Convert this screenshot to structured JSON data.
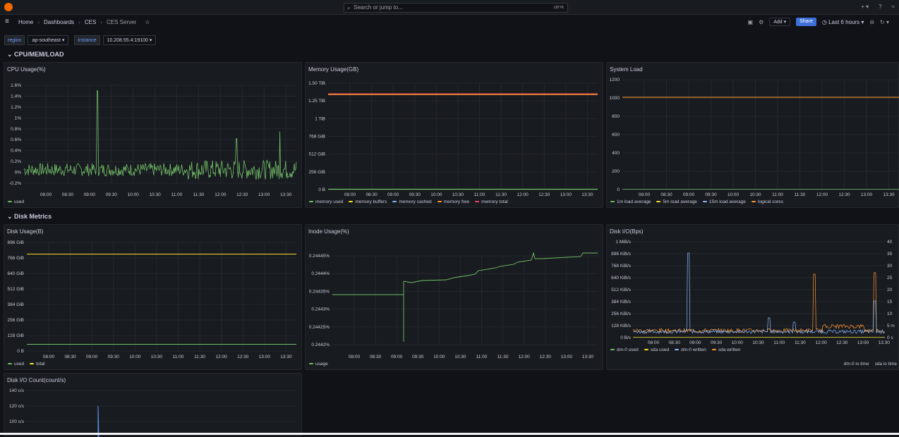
{
  "topbar": {
    "search_placeholder": "Search or jump to...",
    "search_shortcut": "ctrl+k"
  },
  "breadcrumb": [
    "Home",
    "Dashboards",
    "CES",
    "CES Server"
  ],
  "toolbar": {
    "add_label": "Add",
    "share_label": "Share",
    "time_range": "Last 6 hours"
  },
  "variables": [
    {
      "label": "region",
      "value": "ap-southeast"
    },
    {
      "label": "instance",
      "value": "10.208.55.4:19100"
    }
  ],
  "rows": {
    "cpu": "CPU/MEM/LOAD",
    "disk": "Disk Metrics"
  },
  "colors": {
    "green": "#73bf69",
    "yellow": "#fade2a",
    "blue": "#8ab8ff",
    "orange": "#ff9830",
    "red": "#f2495c",
    "pink": "#ff7383"
  },
  "panels": {
    "cpu": {
      "title": "CPU Usage(%)",
      "legend": [
        "used"
      ]
    },
    "mem": {
      "title": "Memory Usage(GB)",
      "legend": [
        "memory used",
        "memory buffers",
        "memory cached",
        "memory free",
        "memory total"
      ]
    },
    "load": {
      "title": "System Load",
      "legend": [
        "1m load average",
        "5m load average",
        "15m load average",
        "logical cores"
      ]
    },
    "disk": {
      "title": "Disk Usage(B)",
      "legend": [
        "used",
        "total"
      ]
    },
    "inode": {
      "title": "Inode Usage(%)",
      "legend": [
        "usage"
      ]
    },
    "diskio": {
      "title": "Disk I/O(Bps)",
      "legend": [
        "dm-0 used",
        "sda used",
        "dm-0 written",
        "sda written"
      ],
      "legend_right": [
        "dm-0 io time",
        "sda io time"
      ]
    },
    "iocount": {
      "title": "Disk I/O Count(count/s)"
    }
  },
  "chart_data": [
    {
      "type": "line",
      "title": "CPU Usage(%)",
      "x_ticks": [
        "08:00",
        "08:30",
        "09:00",
        "09:30",
        "10:00",
        "10:30",
        "11:00",
        "11:30",
        "12:00",
        "12:30",
        "13:00",
        "13:30"
      ],
      "y_ticks": [
        "1.6%",
        "1.4%",
        "1.2%",
        "1%",
        "0.8%",
        "0.6%",
        "0.4%",
        "0.2%",
        "0%",
        "-0.2%"
      ],
      "ylim": [
        -0.2,
        1.6
      ],
      "series": [
        {
          "name": "used",
          "baseline": 0.05,
          "noise": 0.12,
          "spikes": [
            [
              0.27,
              1.5
            ],
            [
              0.78,
              0.62
            ],
            [
              0.94,
              0.75
            ]
          ]
        }
      ]
    },
    {
      "type": "line",
      "title": "Memory Usage(GB)",
      "x_ticks": [
        "08:00",
        "08:30",
        "09:00",
        "09:30",
        "10:00",
        "10:30",
        "11:00",
        "11:30",
        "12:00",
        "12:30",
        "13:00",
        "13:30"
      ],
      "y_ticks": [
        "1.50 TiB",
        "1.25 TiB",
        "1 TiB",
        "768 GiB",
        "512 GiB",
        "256 GiB",
        "0 B"
      ],
      "ylim": [
        0,
        1.5
      ],
      "series": [
        {
          "name": "memory total",
          "value": 1.35
        },
        {
          "name": "memory free",
          "value": 1.34
        },
        {
          "name": "memory used",
          "value": 0.005
        }
      ]
    },
    {
      "type": "line",
      "title": "System Load",
      "x_ticks": [
        "08:00",
        "08:30",
        "09:00",
        "09:30",
        "10:00",
        "10:30",
        "11:00",
        "11:30",
        "12:00",
        "12:30",
        "13:00",
        "13:30"
      ],
      "y_ticks": [
        "1200",
        "1000",
        "800",
        "600",
        "400",
        "200",
        "0"
      ],
      "ylim": [
        0,
        1200
      ],
      "series": [
        {
          "name": "logical cores",
          "value": 1008
        }
      ]
    },
    {
      "type": "line",
      "title": "Disk Usage(B)",
      "x_ticks": [
        "08:00",
        "08:30",
        "09:00",
        "09:30",
        "10:00",
        "10:30",
        "11:00",
        "11:30",
        "12:00",
        "12:30",
        "13:00",
        "13:30"
      ],
      "y_ticks": [
        "896 GiB",
        "768 GiB",
        "640 GiB",
        "512 GiB",
        "384 GiB",
        "256 GiB",
        "128 GiB",
        "0 B"
      ],
      "ylim": [
        0,
        896
      ],
      "series": [
        {
          "name": "total",
          "value": 800
        },
        {
          "name": "used",
          "value": 55
        }
      ]
    },
    {
      "type": "line",
      "title": "Inode Usage(%)",
      "x_ticks": [
        "08:00",
        "08:30",
        "09:00",
        "09:30",
        "10:00",
        "10:30",
        "11:00",
        "11:30",
        "12:00",
        "12:30",
        "13:00",
        "13:30"
      ],
      "y_ticks": [
        "0.24445%",
        "0.2444%",
        "0.24435%",
        "0.2443%",
        "0.24425%",
        "0.2442%"
      ],
      "ylim": [
        0.2442,
        0.24445
      ]
    },
    {
      "type": "line",
      "title": "Disk I/O(Bps)",
      "x_ticks": [
        "08:00",
        "08:30",
        "09:00",
        "09:30",
        "10:00",
        "10:30",
        "11:00",
        "11:30",
        "12:00",
        "12:30",
        "13:00",
        "13:30"
      ],
      "y_ticks": [
        "1 MiB/s",
        "896 KiB/s",
        "768 KiB/s",
        "640 KiB/s",
        "512 KiB/s",
        "384 KiB/s",
        "256 KiB/s",
        "128 KiB/s",
        "0 B/s"
      ],
      "y2_ticks": [
        "40",
        "35",
        "30",
        "25",
        "20",
        "15",
        "10",
        "5 m",
        "0 s"
      ]
    },
    {
      "type": "line",
      "title": "Disk I/O Count(count/s)",
      "y_ticks": [
        "140 c/s",
        "120 c/s",
        "100 c/s"
      ]
    }
  ]
}
